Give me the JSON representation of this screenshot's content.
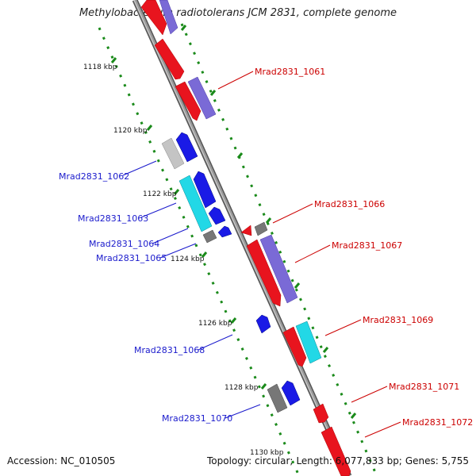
{
  "title": "Methylobacterium radiotolerans JCM 2831, complete genome",
  "accession": "Accession: NC_010505",
  "topology_text": "Topology: circular;",
  "length_text": "Length: 6,077,833 bp;",
  "genes_text": "Genes: 5,755",
  "colors": {
    "backbone": "#8c8c8c",
    "tick": "#1a8a1a",
    "forward": "#e8141e",
    "forward_label": "#cc0000",
    "reverse": "#1a1ae6",
    "reverse_label": "#1a1acc",
    "violet": "#7a6ad6",
    "cyan": "#22d8e6",
    "gray": "#777777",
    "lightgray": "#c4c4c4"
  },
  "scale_labels": [
    "1118 kbp",
    "1120 kbp",
    "1122 kbp",
    "1124 kbp",
    "1126 kbp",
    "1128 kbp",
    "1130 kbp"
  ],
  "forward_gene_labels": [
    "Mrad2831_1061",
    "Mrad2831_1066",
    "Mrad2831_1067",
    "Mrad2831_1069",
    "Mrad2831_1071",
    "Mrad2831_1072"
  ],
  "reverse_gene_labels": [
    "Mrad2831_1062",
    "Mrad2831_1063",
    "Mrad2831_1064",
    "Mrad2831_1065",
    "Mrad2831_1068",
    "Mrad2831_1070"
  ]
}
